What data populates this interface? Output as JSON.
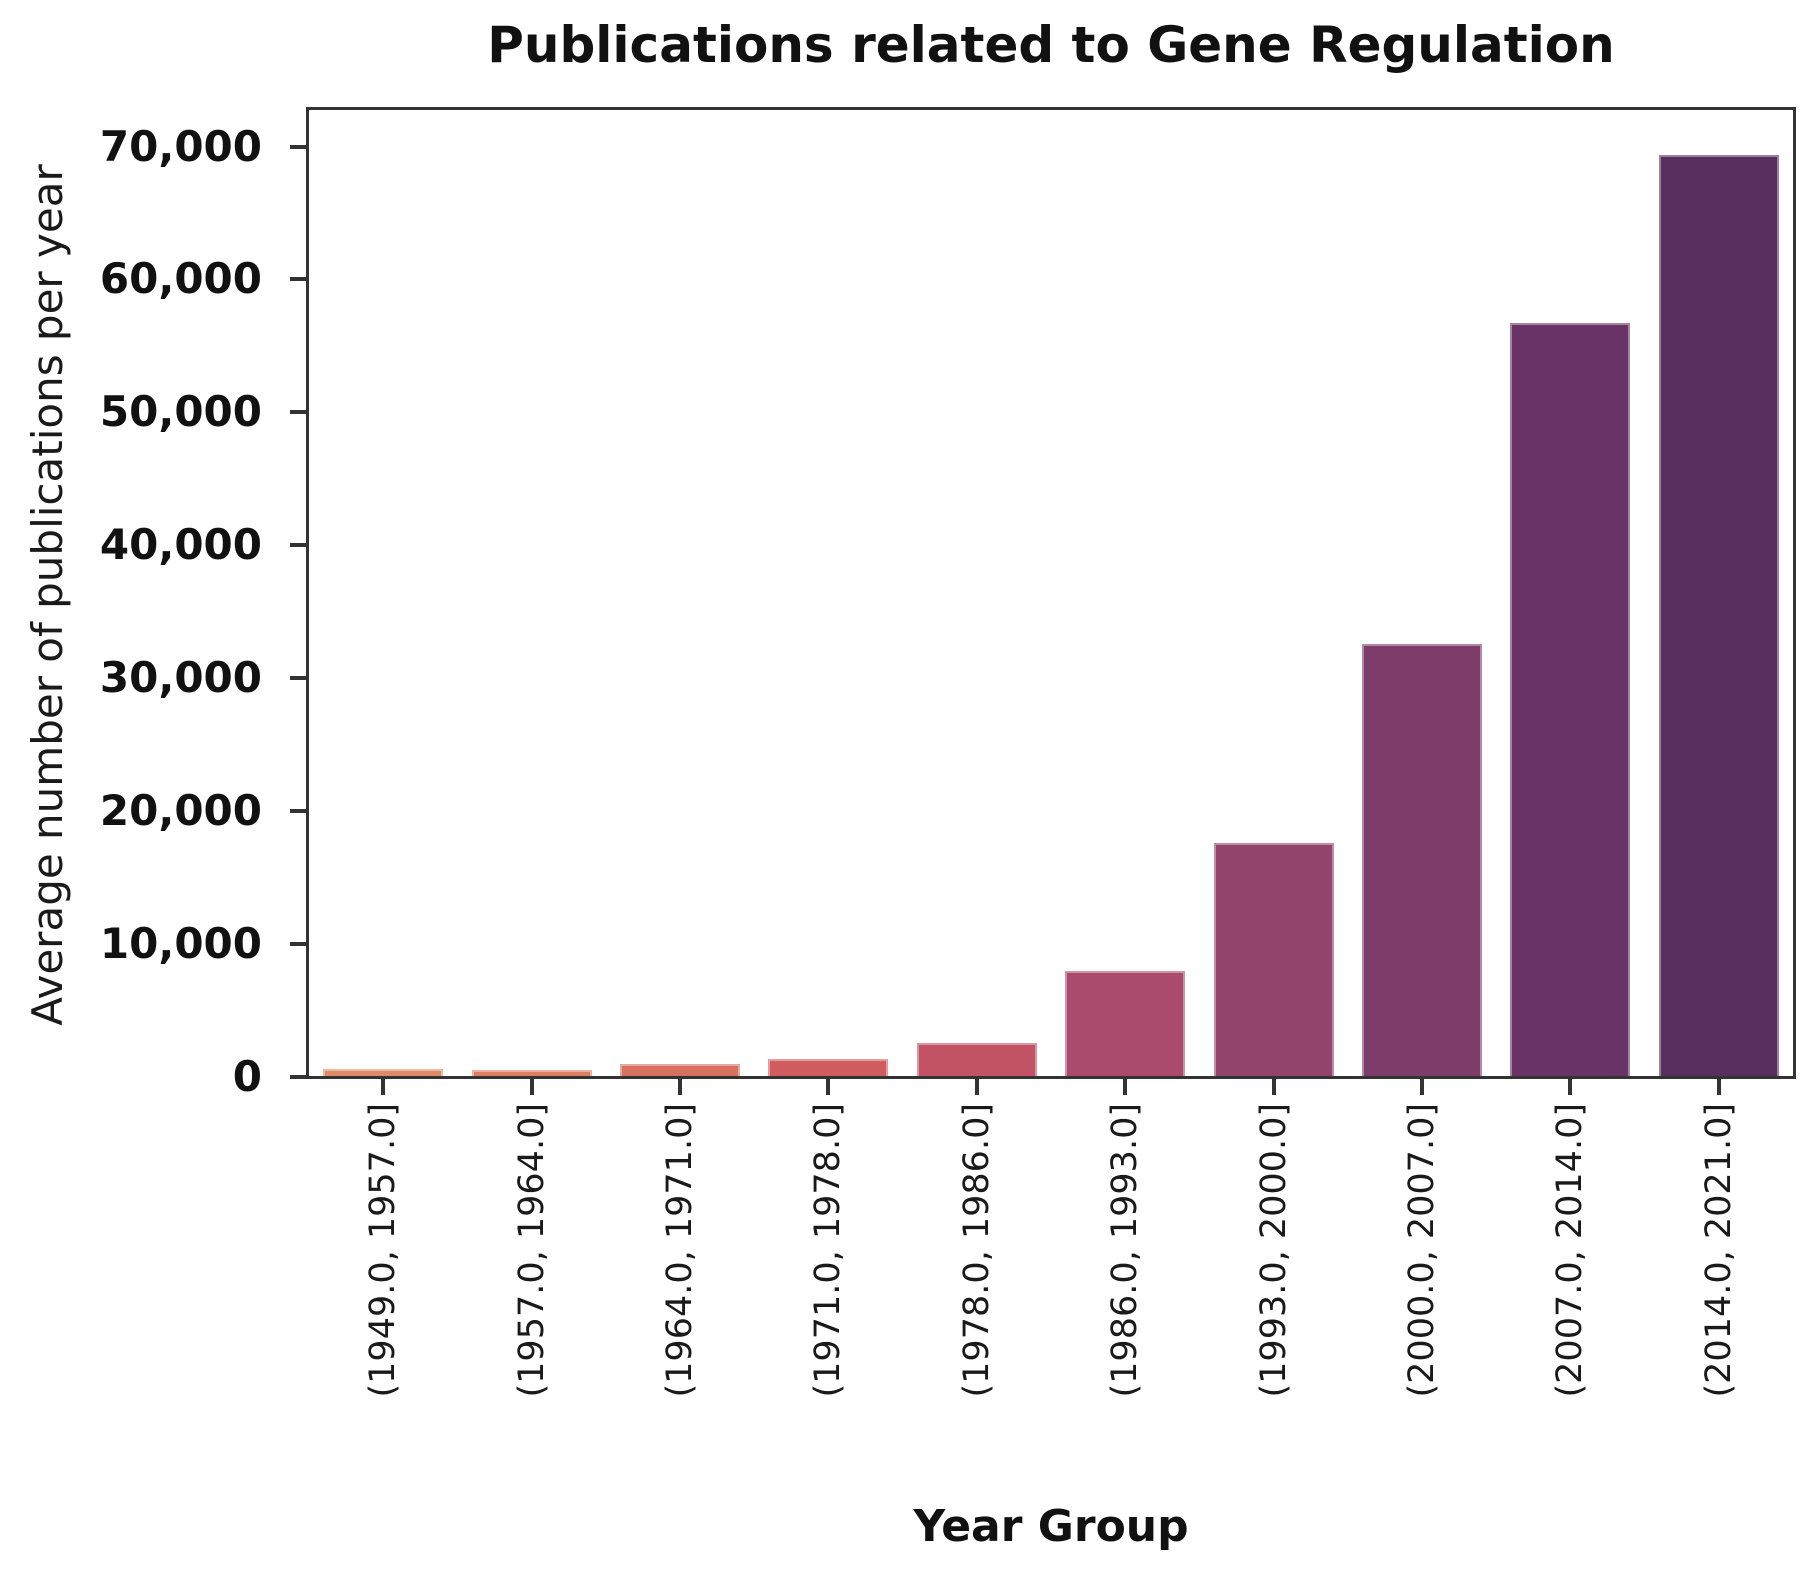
{
  "chart_data": {
    "type": "bar",
    "title": "Publications related to Gene Regulation",
    "xlabel": "Year Group",
    "ylabel": "Average number of publications per year",
    "categories": [
      "(1949.0, 1957.0]",
      "(1957.0, 1964.0]",
      "(1964.0, 1971.0]",
      "(1971.0, 1978.0]",
      "(1978.0, 1986.0]",
      "(1986.0, 1993.0]",
      "(1993.0, 2000.0]",
      "(2000.0, 2007.0]",
      "(2007.0, 2014.0]",
      "(2014.0, 2021.0]"
    ],
    "values": [
      500,
      450,
      900,
      1250,
      2500,
      7900,
      17500,
      32500,
      56700,
      69300
    ],
    "bar_colors": [
      "#df8a66",
      "#dc7f62",
      "#d7705f",
      "#d05c60",
      "#c25365",
      "#ab4a6c",
      "#92446c",
      "#7d3c6a",
      "#6a3365",
      "#57305e"
    ],
    "ylim": [
      0,
      70000
    ],
    "y_axis": {
      "tick_values": [
        0,
        10000,
        20000,
        30000,
        40000,
        50000,
        60000,
        70000
      ],
      "tick_labels": [
        "0",
        "10,000",
        "20,000",
        "30,000",
        "40,000",
        "50,000",
        "60,000",
        "70,000"
      ]
    },
    "grid": false,
    "legend": null,
    "axis_color": "#333333",
    "text_color": "#1a1a1a"
  }
}
